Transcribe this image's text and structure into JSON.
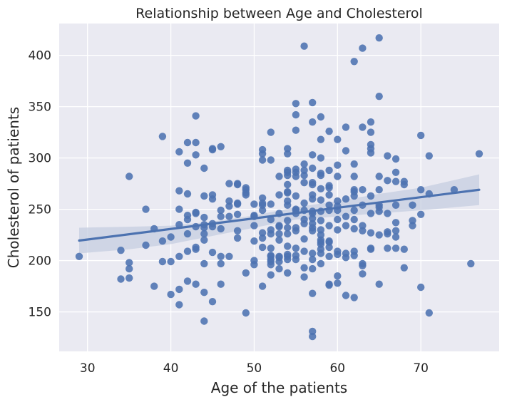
{
  "chart_data": {
    "type": "scatter",
    "title": "Relationship between Age and Cholesterol",
    "xlabel": "Age of the patients",
    "ylabel": "Cholesterol of patients",
    "xlim": [
      26.6,
      79.4
    ],
    "ylim": [
      111.5,
      431
    ],
    "xticks": [
      30,
      40,
      50,
      60,
      70
    ],
    "yticks": [
      150,
      200,
      250,
      300,
      350,
      400
    ],
    "grid": true,
    "colors": {
      "background": "#eaeaf2",
      "grid": "#ffffff",
      "points": "#4c72b0",
      "line": "#4c72b0",
      "band": "#c5cde0"
    },
    "regression": {
      "x": [
        29,
        77
      ],
      "y": [
        219.5,
        269
      ]
    },
    "confidence_band": {
      "x": [
        29,
        35,
        40,
        45,
        50,
        55,
        60,
        65,
        70,
        77
      ],
      "upper": [
        232,
        233,
        234,
        238,
        244,
        252,
        258,
        265,
        271,
        284
      ],
      "lower": [
        207,
        211,
        216,
        224,
        232,
        240,
        243,
        246,
        249,
        254
      ]
    },
    "points": [
      [
        29,
        204
      ],
      [
        34,
        210
      ],
      [
        34,
        182
      ],
      [
        35,
        282
      ],
      [
        35,
        198
      ],
      [
        35,
        192
      ],
      [
        35,
        183
      ],
      [
        37,
        250
      ],
      [
        37,
        215
      ],
      [
        38,
        231
      ],
      [
        38,
        175
      ],
      [
        39,
        321
      ],
      [
        39,
        219
      ],
      [
        39,
        199
      ],
      [
        40,
        223
      ],
      [
        40,
        199
      ],
      [
        40,
        167
      ],
      [
        41,
        306
      ],
      [
        41,
        268
      ],
      [
        41,
        250
      ],
      [
        41,
        235
      ],
      [
        41,
        204
      ],
      [
        41,
        172
      ],
      [
        41,
        157
      ],
      [
        42,
        315
      ],
      [
        42,
        295
      ],
      [
        42,
        265
      ],
      [
        42,
        244
      ],
      [
        42,
        240
      ],
      [
        42,
        226
      ],
      [
        42,
        209
      ],
      [
        42,
        180
      ],
      [
        43,
        341
      ],
      [
        43,
        315
      ],
      [
        43,
        303
      ],
      [
        43,
        247
      ],
      [
        43,
        246
      ],
      [
        43,
        233
      ],
      [
        43,
        213
      ],
      [
        43,
        211
      ],
      [
        43,
        177
      ],
      [
        44,
        290
      ],
      [
        44,
        263
      ],
      [
        44,
        242
      ],
      [
        44,
        235
      ],
      [
        44,
        232
      ],
      [
        44,
        226
      ],
      [
        44,
        220
      ],
      [
        44,
        197
      ],
      [
        44,
        169
      ],
      [
        44,
        141
      ],
      [
        45,
        309
      ],
      [
        45,
        308
      ],
      [
        45,
        264
      ],
      [
        45,
        260
      ],
      [
        45,
        236
      ],
      [
        45,
        233
      ],
      [
        45,
        208
      ],
      [
        45,
        160
      ],
      [
        46,
        311
      ],
      [
        46,
        249
      ],
      [
        46,
        243
      ],
      [
        46,
        231
      ],
      [
        46,
        204
      ],
      [
        46,
        197
      ],
      [
        46,
        177
      ],
      [
        47,
        275
      ],
      [
        47,
        258
      ],
      [
        47,
        253
      ],
      [
        47,
        243
      ],
      [
        47,
        204
      ],
      [
        48,
        275
      ],
      [
        48,
        274
      ],
      [
        48,
        256
      ],
      [
        48,
        255
      ],
      [
        48,
        245
      ],
      [
        48,
        229
      ],
      [
        48,
        222
      ],
      [
        49,
        271
      ],
      [
        49,
        269
      ],
      [
        49,
        266
      ],
      [
        49,
        264
      ],
      [
        49,
        188
      ],
      [
        49,
        149
      ],
      [
        50,
        255
      ],
      [
        50,
        244
      ],
      [
        50,
        243
      ],
      [
        50,
        234
      ],
      [
        50,
        219
      ],
      [
        50,
        200
      ],
      [
        50,
        196
      ],
      [
        51,
        308
      ],
      [
        51,
        304
      ],
      [
        51,
        298
      ],
      [
        51,
        261
      ],
      [
        51,
        256
      ],
      [
        51,
        254
      ],
      [
        51,
        249
      ],
      [
        51,
        227
      ],
      [
        51,
        222
      ],
      [
        51,
        213
      ],
      [
        51,
        175
      ],
      [
        52,
        325
      ],
      [
        52,
        298
      ],
      [
        52,
        255
      ],
      [
        52,
        240
      ],
      [
        52,
        230
      ],
      [
        52,
        226
      ],
      [
        52,
        212
      ],
      [
        52,
        205
      ],
      [
        52,
        204
      ],
      [
        52,
        201
      ],
      [
        52,
        199
      ],
      [
        52,
        196
      ],
      [
        52,
        186
      ],
      [
        53,
        282
      ],
      [
        53,
        264
      ],
      [
        53,
        246
      ],
      [
        53,
        234
      ],
      [
        53,
        233
      ],
      [
        53,
        226
      ],
      [
        53,
        220
      ],
      [
        53,
        204
      ],
      [
        53,
        203
      ],
      [
        53,
        199
      ],
      [
        53,
        192
      ],
      [
        54,
        309
      ],
      [
        54,
        304
      ],
      [
        54,
        288
      ],
      [
        54,
        286
      ],
      [
        54,
        283
      ],
      [
        54,
        274
      ],
      [
        54,
        267
      ],
      [
        54,
        266
      ],
      [
        54,
        258
      ],
      [
        54,
        254
      ],
      [
        54,
        239
      ],
      [
        54,
        232
      ],
      [
        54,
        226
      ],
      [
        54,
        214
      ],
      [
        54,
        206
      ],
      [
        54,
        204
      ],
      [
        54,
        201
      ],
      [
        54,
        188
      ],
      [
        55,
        353
      ],
      [
        55,
        342
      ],
      [
        55,
        327
      ],
      [
        55,
        289
      ],
      [
        55,
        286
      ],
      [
        55,
        282
      ],
      [
        55,
        263
      ],
      [
        55,
        250
      ],
      [
        55,
        249
      ],
      [
        55,
        246
      ],
      [
        55,
        232
      ],
      [
        55,
        229
      ],
      [
        55,
        212
      ],
      [
        55,
        205
      ],
      [
        55,
        201
      ],
      [
        56,
        409
      ],
      [
        56,
        294
      ],
      [
        56,
        288
      ],
      [
        56,
        283
      ],
      [
        56,
        276
      ],
      [
        56,
        256
      ],
      [
        56,
        249
      ],
      [
        56,
        240
      ],
      [
        56,
        236
      ],
      [
        56,
        221
      ],
      [
        56,
        209
      ],
      [
        56,
        193
      ],
      [
        56,
        184
      ],
      [
        57,
        354
      ],
      [
        57,
        335
      ],
      [
        57,
        303
      ],
      [
        57,
        290
      ],
      [
        57,
        276
      ],
      [
        57,
        274
      ],
      [
        57,
        264
      ],
      [
        57,
        260
      ],
      [
        57,
        248
      ],
      [
        57,
        246
      ],
      [
        57,
        241
      ],
      [
        57,
        236
      ],
      [
        57,
        232
      ],
      [
        57,
        229
      ],
      [
        57,
        207
      ],
      [
        57,
        201
      ],
      [
        57,
        192
      ],
      [
        57,
        168
      ],
      [
        57,
        131
      ],
      [
        57,
        126
      ],
      [
        58,
        340
      ],
      [
        58,
        318
      ],
      [
        58,
        300
      ],
      [
        58,
        285
      ],
      [
        58,
        283
      ],
      [
        58,
        270
      ],
      [
        58,
        259
      ],
      [
        58,
        248
      ],
      [
        58,
        239
      ],
      [
        58,
        230
      ],
      [
        58,
        225
      ],
      [
        58,
        220
      ],
      [
        58,
        218
      ],
      [
        58,
        216
      ],
      [
        58,
        211
      ],
      [
        58,
        207
      ],
      [
        58,
        197
      ],
      [
        59,
        326
      ],
      [
        59,
        288
      ],
      [
        59,
        273
      ],
      [
        59,
        271
      ],
      [
        59,
        264
      ],
      [
        59,
        254
      ],
      [
        59,
        249
      ],
      [
        59,
        234
      ],
      [
        59,
        219
      ],
      [
        59,
        218
      ],
      [
        59,
        213
      ],
      [
        59,
        204
      ],
      [
        59,
        177
      ],
      [
        59,
        176
      ],
      [
        60,
        318
      ],
      [
        60,
        293
      ],
      [
        60,
        282
      ],
      [
        60,
        258
      ],
      [
        60,
        253
      ],
      [
        60,
        249
      ],
      [
        60,
        240
      ],
      [
        60,
        230
      ],
      [
        60,
        209
      ],
      [
        60,
        206
      ],
      [
        60,
        185
      ],
      [
        60,
        178
      ],
      [
        61,
        330
      ],
      [
        61,
        307
      ],
      [
        61,
        260
      ],
      [
        61,
        243
      ],
      [
        61,
        234
      ],
      [
        61,
        207
      ],
      [
        61,
        203
      ],
      [
        61,
        166
      ],
      [
        62,
        394
      ],
      [
        62,
        294
      ],
      [
        62,
        282
      ],
      [
        62,
        269
      ],
      [
        62,
        267
      ],
      [
        62,
        263
      ],
      [
        62,
        249
      ],
      [
        62,
        240
      ],
      [
        62,
        231
      ],
      [
        62,
        209
      ],
      [
        62,
        205
      ],
      [
        62,
        164
      ],
      [
        63,
        407
      ],
      [
        63,
        330
      ],
      [
        63,
        269
      ],
      [
        63,
        254
      ],
      [
        63,
        234
      ],
      [
        63,
        229
      ],
      [
        63,
        197
      ],
      [
        63,
        195
      ],
      [
        63,
        187
      ],
      [
        64,
        335
      ],
      [
        64,
        325
      ],
      [
        64,
        313
      ],
      [
        64,
        309
      ],
      [
        64,
        305
      ],
      [
        64,
        263
      ],
      [
        64,
        246
      ],
      [
        64,
        227
      ],
      [
        64,
        212
      ],
      [
        64,
        211
      ],
      [
        65,
        417
      ],
      [
        65,
        360
      ],
      [
        65,
        282
      ],
      [
        65,
        269
      ],
      [
        65,
        254
      ],
      [
        65,
        252
      ],
      [
        65,
        248
      ],
      [
        65,
        225
      ],
      [
        65,
        177
      ],
      [
        66,
        302
      ],
      [
        66,
        278
      ],
      [
        66,
        246
      ],
      [
        66,
        228
      ],
      [
        66,
        226
      ],
      [
        66,
        212
      ],
      [
        67,
        299
      ],
      [
        67,
        286
      ],
      [
        67,
        277
      ],
      [
        67,
        254
      ],
      [
        67,
        237
      ],
      [
        67,
        229
      ],
      [
        67,
        223
      ],
      [
        67,
        212
      ],
      [
        68,
        277
      ],
      [
        68,
        274
      ],
      [
        68,
        211
      ],
      [
        68,
        193
      ],
      [
        69,
        254
      ],
      [
        69,
        239
      ],
      [
        69,
        234
      ],
      [
        70,
        322
      ],
      [
        70,
        269
      ],
      [
        70,
        245
      ],
      [
        70,
        174
      ],
      [
        71,
        302
      ],
      [
        71,
        265
      ],
      [
        71,
        149
      ],
      [
        74,
        269
      ],
      [
        76,
        197
      ],
      [
        77,
        304
      ]
    ]
  }
}
